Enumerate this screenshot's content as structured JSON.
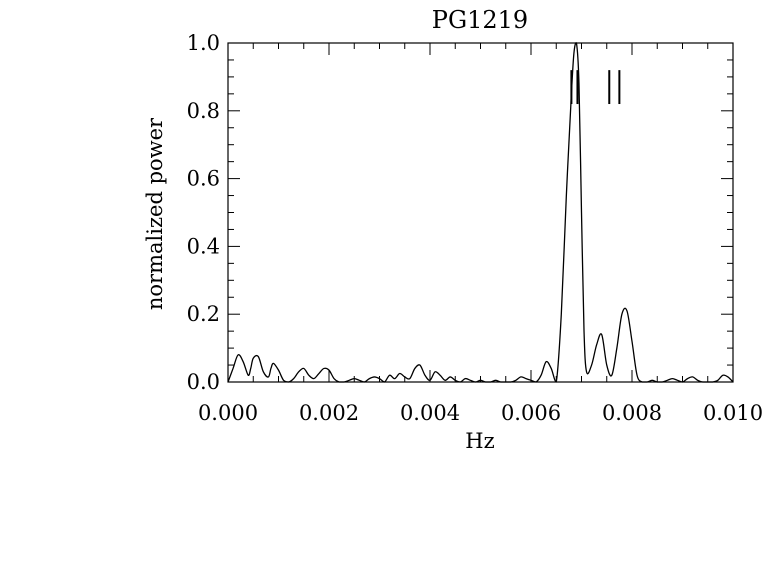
{
  "chart_data": {
    "type": "line",
    "title": "PG1219",
    "xlabel": "Hz",
    "ylabel": "normalized power",
    "xlim": [
      0.0,
      0.01
    ],
    "ylim": [
      0.0,
      1.0
    ],
    "x_ticks": [
      "0.000",
      "0.002",
      "0.004",
      "0.006",
      "0.008",
      "0.010"
    ],
    "y_ticks": [
      "0.0",
      "0.2",
      "0.4",
      "0.6",
      "0.8",
      "1.0"
    ],
    "grid": false,
    "legend": "none",
    "series": [
      {
        "x": [
          0.0,
          0.0001,
          0.0002,
          0.0003,
          0.0004,
          0.00045,
          0.0005,
          0.0006,
          0.0007,
          0.0008,
          0.00085,
          0.0009,
          0.001,
          0.0011,
          0.0012,
          0.0013,
          0.0014,
          0.0015,
          0.0016,
          0.0017,
          0.0018,
          0.0019,
          0.002,
          0.0021,
          0.0022,
          0.0023,
          0.0024,
          0.0025,
          0.0026,
          0.0027,
          0.0028,
          0.0029,
          0.003,
          0.0031,
          0.0032,
          0.0033,
          0.0034,
          0.0035,
          0.0036,
          0.0037,
          0.0038,
          0.0039,
          0.004,
          0.0041,
          0.0042,
          0.0043,
          0.0044,
          0.0045,
          0.0046,
          0.0047,
          0.0048,
          0.0049,
          0.005,
          0.0051,
          0.0052,
          0.0053,
          0.0054,
          0.0055,
          0.0056,
          0.0057,
          0.0058,
          0.0059,
          0.006,
          0.0061,
          0.0062,
          0.0063,
          0.0064,
          0.0065,
          0.0066,
          0.0067,
          0.0068,
          0.00685,
          0.0069,
          0.00695,
          0.007,
          0.00705,
          0.0071,
          0.0072,
          0.0073,
          0.0074,
          0.0075,
          0.0076,
          0.0077,
          0.0078,
          0.0079,
          0.008,
          0.0081,
          0.0082,
          0.0083,
          0.0084,
          0.0085,
          0.0086,
          0.0087,
          0.0088,
          0.0089,
          0.009,
          0.0091,
          0.0092,
          0.0093,
          0.0094,
          0.0095,
          0.0096,
          0.0097,
          0.0098,
          0.0099,
          0.01
        ],
        "y": [
          0.0,
          0.04,
          0.08,
          0.06,
          0.02,
          0.04,
          0.07,
          0.075,
          0.03,
          0.015,
          0.04,
          0.055,
          0.035,
          0.005,
          0.0,
          0.01,
          0.03,
          0.04,
          0.02,
          0.01,
          0.025,
          0.04,
          0.035,
          0.01,
          0.0,
          0.0,
          0.005,
          0.01,
          0.005,
          0.0,
          0.01,
          0.015,
          0.01,
          0.0,
          0.02,
          0.01,
          0.025,
          0.015,
          0.01,
          0.04,
          0.05,
          0.02,
          0.005,
          0.03,
          0.02,
          0.005,
          0.015,
          0.005,
          0.0,
          0.01,
          0.005,
          0.0,
          0.005,
          0.0,
          0.0,
          0.005,
          0.0,
          0.0,
          0.0,
          0.005,
          0.015,
          0.01,
          0.005,
          0.0,
          0.02,
          0.06,
          0.04,
          0.0,
          0.2,
          0.55,
          0.85,
          0.97,
          1.0,
          0.88,
          0.5,
          0.15,
          0.03,
          0.05,
          0.11,
          0.14,
          0.05,
          0.02,
          0.1,
          0.2,
          0.21,
          0.12,
          0.02,
          0.0,
          0.0,
          0.005,
          0.0,
          0.0,
          0.005,
          0.01,
          0.005,
          0.0,
          0.01,
          0.015,
          0.005,
          0.0,
          0.0,
          0.0,
          0.005,
          0.02,
          0.015,
          0.0
        ]
      }
    ],
    "annotations": [
      {
        "type": "vline",
        "x": 0.0068,
        "y": [
          0.82,
          0.92
        ]
      },
      {
        "type": "vline",
        "x": 0.00692,
        "y": [
          0.82,
          0.92
        ]
      },
      {
        "type": "vline",
        "x": 0.00755,
        "y": [
          0.82,
          0.92
        ]
      },
      {
        "type": "vline",
        "x": 0.00775,
        "y": [
          0.82,
          0.92
        ]
      }
    ]
  }
}
